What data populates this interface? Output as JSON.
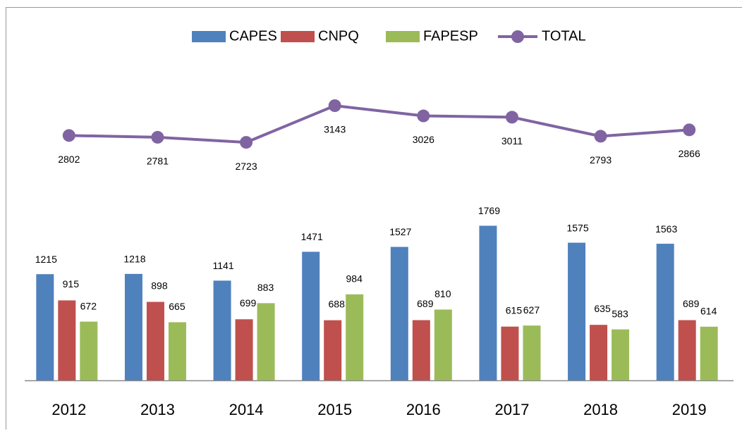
{
  "chart_data": {
    "type": "bar",
    "categories": [
      "2012",
      "2013",
      "2014",
      "2015",
      "2016",
      "2017",
      "2018",
      "2019"
    ],
    "series": [
      {
        "name": "CAPES",
        "color": "#4f81bd",
        "values": [
          1215,
          1218,
          1141,
          1471,
          1527,
          1769,
          1575,
          1563
        ]
      },
      {
        "name": "CNPQ",
        "color": "#c0504d",
        "values": [
          915,
          898,
          699,
          688,
          689,
          615,
          635,
          689
        ]
      },
      {
        "name": "FAPESP",
        "color": "#9bbb59",
        "values": [
          672,
          665,
          883,
          984,
          810,
          627,
          583,
          614
        ]
      },
      {
        "name": "TOTAL",
        "color": "#8064a2",
        "type": "line",
        "values": [
          2802,
          2781,
          2723,
          3143,
          3026,
          3011,
          2793,
          2866
        ]
      }
    ],
    "legend": "top"
  }
}
